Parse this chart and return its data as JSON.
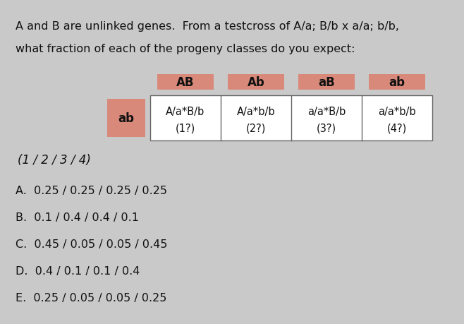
{
  "title_line1": "A and B are unlinked genes.  From a testcross of A/a; B/b x a/a; b/b,",
  "title_line2": "what fraction of each of the progeny classes do you expect:",
  "col_headers": [
    "AB",
    "Ab",
    "aB",
    "ab"
  ],
  "row_header": "ab",
  "cell_top": [
    "A/a*B/b",
    "A/a*b/b",
    "a/a*B/b",
    "a/a*b/b"
  ],
  "cell_bot": [
    "(1?)",
    "(2?)",
    "(3?)",
    "(4?)"
  ],
  "choices": [
    "A.  0.25 / 0.25 / 0.25 / 0.25",
    "B.  0.1 / 0.4 / 0.4 / 0.1",
    "C.  0.45 / 0.05 / 0.05 / 0.45",
    "D.  0.4 / 0.1 / 0.1 / 0.4",
    "E.  0.25 / 0.05 / 0.05 / 0.25"
  ],
  "bg_color": "#c9c9c9",
  "header_bg": "#d9897a",
  "cell_bg": "#ffffff",
  "border_color": "#666666",
  "text_color": "#111111",
  "title_fontsize": 11.5,
  "answer_fontsize": 12.0,
  "choice_fontsize": 11.5,
  "table_header_fontsize": 12,
  "table_cell_fontsize": 10.5,
  "row_header_fontsize": 12
}
